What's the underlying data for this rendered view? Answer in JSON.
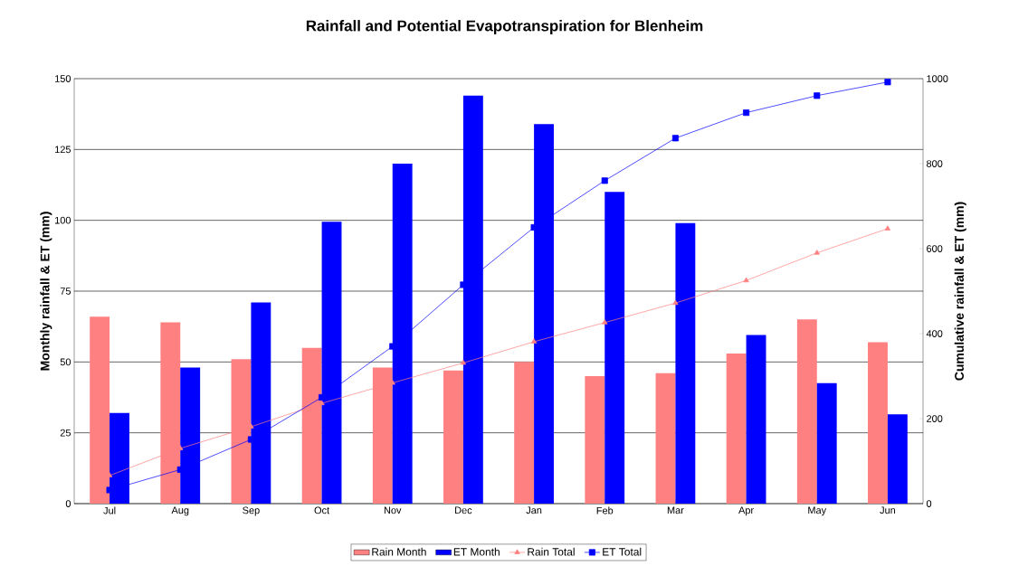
{
  "chart_data": {
    "type": "bar",
    "title": "Rainfall and Potential Evapotranspiration for Blenheim",
    "ylabel": "Monthly rainfall & ET (mm)",
    "y2label": "Cumulative rainfall & ET (mm)",
    "categories": [
      "Jul",
      "Aug",
      "Sep",
      "Oct",
      "Nov",
      "Dec",
      "Jan",
      "Feb",
      "Mar",
      "Apr",
      "May",
      "Jun"
    ],
    "series": [
      {
        "name": "Rain Month",
        "color": "#ff8080",
        "values": [
          66,
          64,
          51,
          55,
          48,
          47,
          50,
          45,
          46,
          53,
          65,
          57
        ]
      },
      {
        "name": "ET Month",
        "color": "#0000ff",
        "values": [
          32,
          48,
          71,
          99.5,
          120,
          144,
          134,
          110,
          99,
          59.5,
          42.5,
          31.5
        ]
      },
      {
        "name": "Rain Total",
        "type": "line",
        "axis": "y2",
        "marker": "triangle",
        "color": "#ff8080",
        "values": [
          66,
          130,
          181,
          236,
          284,
          331,
          381,
          426,
          472,
          525,
          590,
          647
        ]
      },
      {
        "name": "ET Total",
        "type": "line",
        "axis": "y2",
        "marker": "square",
        "color": "#0000ff",
        "values": [
          32,
          80,
          151,
          250,
          370,
          515,
          650,
          760,
          860,
          920,
          960,
          992
        ]
      }
    ],
    "ylim": [
      0,
      150
    ],
    "yticks": [
      0,
      25,
      50,
      75,
      100,
      125,
      150
    ],
    "y2lim": [
      0,
      1000
    ],
    "y2ticks": [
      0,
      200,
      400,
      600,
      800,
      1000
    ],
    "grid": "y",
    "legend": "bottom"
  }
}
